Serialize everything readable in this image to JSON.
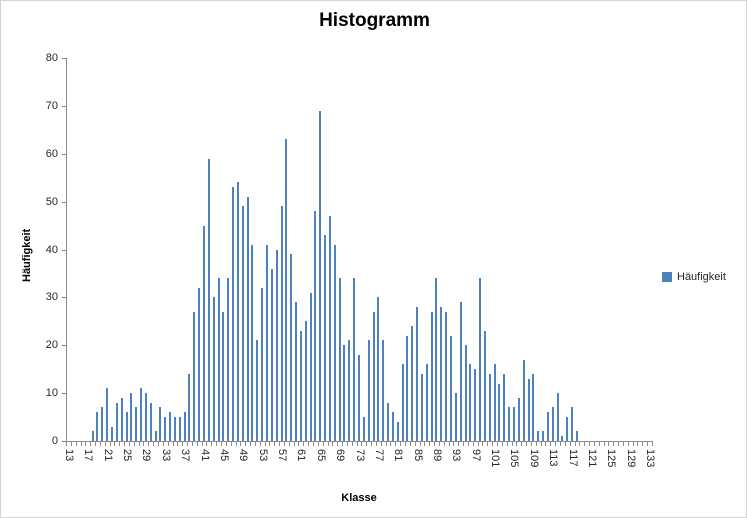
{
  "title": "Histogramm",
  "axes": {
    "y_title": "Häufigkeit",
    "x_title": "Klasse",
    "y_ticks": [
      0,
      10,
      20,
      30,
      40,
      50,
      60,
      70,
      80
    ],
    "x_tick_labels": [
      "13",
      "17",
      "21",
      "25",
      "29",
      "33",
      "37",
      "41",
      "45",
      "49",
      "53",
      "57",
      "61",
      "65",
      "69",
      "73",
      "77",
      "81",
      "85",
      "89",
      "93",
      "97",
      "101",
      "105",
      "109",
      "113",
      "117",
      "121",
      "125",
      "129",
      "133"
    ]
  },
  "legend": {
    "label": "Häufigkeit"
  },
  "colors": {
    "bar": "#4f81bd",
    "axis": "#8c8c8c",
    "tick_text": "#262626",
    "title_text": "#000000"
  },
  "chart_data": {
    "type": "bar",
    "title": "Histogramm",
    "xlabel": "Klasse",
    "ylabel": "Häufigkeit",
    "ylim": [
      0,
      80
    ],
    "grid": false,
    "legend_position": "right",
    "series_name": "Häufigkeit",
    "x_start": 13,
    "x_end": 133,
    "x_label_step": 4,
    "categories": [
      13,
      14,
      15,
      16,
      17,
      18,
      19,
      20,
      21,
      22,
      23,
      24,
      25,
      26,
      27,
      28,
      29,
      30,
      31,
      32,
      33,
      34,
      35,
      36,
      37,
      38,
      39,
      40,
      41,
      42,
      43,
      44,
      45,
      46,
      47,
      48,
      49,
      50,
      51,
      52,
      53,
      54,
      55,
      56,
      57,
      58,
      59,
      60,
      61,
      62,
      63,
      64,
      65,
      66,
      67,
      68,
      69,
      70,
      71,
      72,
      73,
      74,
      75,
      76,
      77,
      78,
      79,
      80,
      81,
      82,
      83,
      84,
      85,
      86,
      87,
      88,
      89,
      90,
      91,
      92,
      93,
      94,
      95,
      96,
      97,
      98,
      99,
      100,
      101,
      102,
      103,
      104,
      105,
      106,
      107,
      108,
      109,
      110,
      111,
      112,
      113,
      114,
      115,
      116,
      117,
      118,
      119,
      120,
      121,
      122,
      123,
      124,
      125,
      126,
      127,
      128,
      129,
      130,
      131,
      132,
      133
    ],
    "values": [
      0,
      0,
      0,
      0,
      0,
      2,
      6,
      7,
      11,
      3,
      8,
      9,
      6,
      10,
      7,
      11,
      10,
      8,
      2,
      7,
      5,
      6,
      5,
      5,
      6,
      14,
      27,
      32,
      45,
      59,
      30,
      34,
      27,
      34,
      53,
      54,
      49,
      51,
      41,
      21,
      32,
      41,
      36,
      40,
      49,
      63,
      39,
      29,
      23,
      25,
      31,
      48,
      69,
      43,
      47,
      41,
      34,
      20,
      21,
      34,
      18,
      5,
      21,
      27,
      30,
      21,
      8,
      6,
      4,
      16,
      22,
      24,
      28,
      14,
      16,
      27,
      34,
      28,
      27,
      22,
      10,
      29,
      20,
      16,
      15,
      34,
      23,
      14,
      16,
      12,
      14,
      7,
      7,
      9,
      17,
      13,
      14,
      2,
      2,
      6,
      7,
      10,
      1,
      5,
      7,
      2,
      0,
      0,
      0,
      0,
      0,
      0,
      0,
      0,
      0,
      0,
      0,
      0,
      0,
      0,
      0
    ]
  }
}
